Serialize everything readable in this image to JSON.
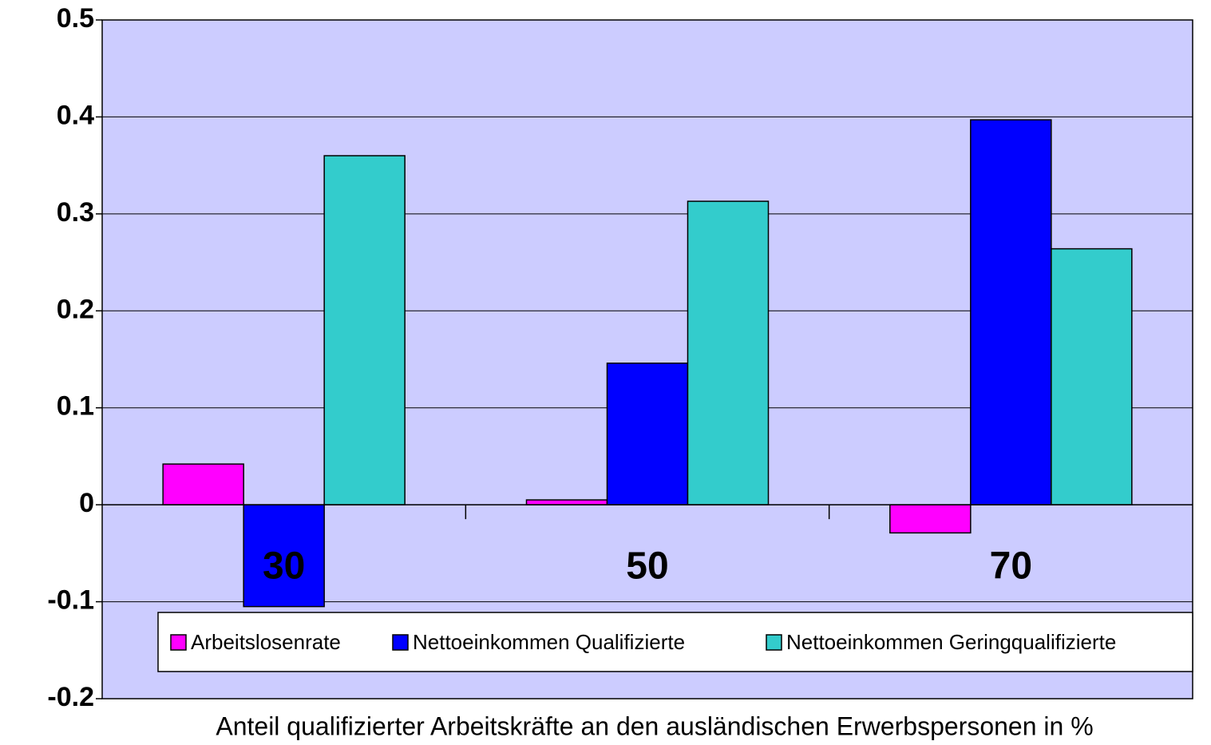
{
  "chart_data": {
    "type": "bar",
    "x_label": "Anteil qualifizierter Arbeitskräfte an den ausländischen Erwerbspersonen in %",
    "categories": [
      "30",
      "50",
      "70"
    ],
    "series": [
      {
        "name": "Arbeitslosenrate",
        "color": "#ff00ff",
        "values": [
          0.042,
          0.005,
          -0.029
        ]
      },
      {
        "name": "Nettoeinkommen Qualifizierte",
        "color": "#0000ff",
        "values": [
          -0.105,
          0.146,
          0.397
        ]
      },
      {
        "name": "Nettoeinkommen Geringqualifizierte",
        "color": "#33cccc",
        "values": [
          0.36,
          0.313,
          0.264
        ]
      }
    ],
    "ylim": [
      -0.2,
      0.5
    ],
    "yticks": [
      -0.2,
      -0.1,
      0,
      0.1,
      0.2,
      0.3,
      0.4,
      0.5
    ],
    "grid": true
  }
}
